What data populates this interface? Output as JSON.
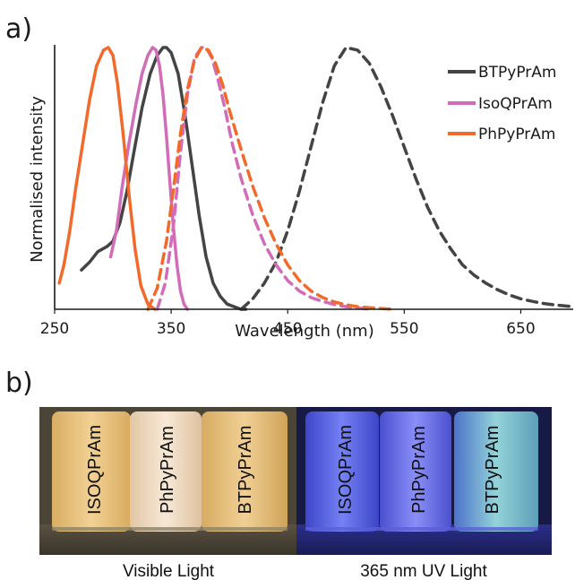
{
  "panel_labels": {
    "a": "a)",
    "b": "b)"
  },
  "chart_data": {
    "type": "line",
    "title": "",
    "xlabel": "Wavelength (nm)",
    "ylabel": "Normalised intensity",
    "xlim": [
      250,
      695
    ],
    "ylim": [
      0,
      1.0
    ],
    "x_ticks": [
      250,
      350,
      450,
      550,
      650
    ],
    "y_ticks": [],
    "grid": false,
    "legend_position": "top-right",
    "legend": [
      {
        "name": "BTPyPrAm",
        "color": "#444444"
      },
      {
        "name": "IsoQPrAm",
        "color": "#d36cb8"
      },
      {
        "name": "PhPyPrAm",
        "color": "#f26a2b"
      }
    ],
    "series": [
      {
        "name": "BTPyPrAm",
        "kind": "excitation",
        "color": "#444444",
        "dash": "solid",
        "x": [
          273,
          280,
          287,
          295,
          300,
          306,
          312,
          318,
          325,
          332,
          338,
          343,
          346,
          350,
          356,
          362,
          368,
          374,
          380,
          386,
          392,
          398,
          404,
          410,
          414
        ],
        "y": [
          0.15,
          0.18,
          0.22,
          0.24,
          0.26,
          0.33,
          0.45,
          0.6,
          0.77,
          0.9,
          0.97,
          1.0,
          1.0,
          0.98,
          0.9,
          0.74,
          0.55,
          0.36,
          0.2,
          0.1,
          0.05,
          0.02,
          0.01,
          0.0,
          0.0
        ]
      },
      {
        "name": "BTPyPrAm",
        "kind": "emission",
        "color": "#444444",
        "dash": "dashed",
        "x": [
          410,
          420,
          430,
          440,
          450,
          460,
          470,
          480,
          490,
          500,
          510,
          520,
          530,
          540,
          550,
          560,
          570,
          580,
          590,
          600,
          610,
          620,
          630,
          640,
          650,
          660,
          670,
          680,
          690,
          695
        ],
        "y": [
          0.0,
          0.04,
          0.1,
          0.18,
          0.3,
          0.45,
          0.62,
          0.79,
          0.93,
          1.0,
          0.99,
          0.94,
          0.85,
          0.74,
          0.62,
          0.5,
          0.39,
          0.3,
          0.23,
          0.17,
          0.13,
          0.1,
          0.075,
          0.055,
          0.04,
          0.03,
          0.022,
          0.016,
          0.012,
          0.01
        ]
      },
      {
        "name": "IsoQPrAm",
        "kind": "excitation",
        "color": "#d36cb8",
        "dash": "solid",
        "x": [
          298,
          303,
          308,
          314,
          320,
          325,
          330,
          334,
          337,
          340,
          343,
          346,
          349,
          352,
          355,
          358,
          361,
          364
        ],
        "y": [
          0.2,
          0.3,
          0.47,
          0.64,
          0.79,
          0.9,
          0.97,
          1.0,
          0.99,
          0.93,
          0.82,
          0.66,
          0.48,
          0.31,
          0.17,
          0.07,
          0.02,
          0.0
        ]
      },
      {
        "name": "IsoQPrAm",
        "kind": "emission",
        "color": "#d36cb8",
        "dash": "dashed",
        "x": [
          338,
          345,
          352,
          358,
          364,
          370,
          376,
          380,
          385,
          390,
          396,
          402,
          410,
          420,
          430,
          440,
          450,
          460,
          470,
          480,
          490,
          500,
          510,
          520
        ],
        "y": [
          0.0,
          0.1,
          0.32,
          0.6,
          0.82,
          0.96,
          1.0,
          1.0,
          0.96,
          0.88,
          0.77,
          0.64,
          0.5,
          0.36,
          0.25,
          0.17,
          0.11,
          0.07,
          0.045,
          0.03,
          0.018,
          0.01,
          0.005,
          0.0
        ]
      },
      {
        "name": "PhPyPrAm",
        "kind": "excitation",
        "color": "#f26a2b",
        "dash": "solid",
        "x": [
          254,
          258,
          263,
          268,
          274,
          280,
          286,
          292,
          296,
          300,
          304,
          309,
          314,
          319,
          324,
          330,
          336
        ],
        "y": [
          0.1,
          0.17,
          0.3,
          0.46,
          0.63,
          0.8,
          0.93,
          0.99,
          1.0,
          0.97,
          0.86,
          0.66,
          0.43,
          0.23,
          0.09,
          0.02,
          0.0
        ]
      },
      {
        "name": "PhPyPrAm",
        "kind": "emission",
        "color": "#f26a2b",
        "dash": "dashed",
        "x": [
          330,
          338,
          346,
          352,
          358,
          364,
          370,
          376,
          382,
          388,
          394,
          400,
          410,
          420,
          430,
          440,
          450,
          460,
          470,
          480,
          490,
          500,
          510,
          520,
          530,
          540
        ],
        "y": [
          0.0,
          0.08,
          0.26,
          0.46,
          0.67,
          0.84,
          0.95,
          1.0,
          0.99,
          0.94,
          0.86,
          0.76,
          0.61,
          0.47,
          0.35,
          0.25,
          0.17,
          0.11,
          0.07,
          0.045,
          0.028,
          0.017,
          0.01,
          0.006,
          0.003,
          0.0
        ]
      }
    ]
  },
  "photo": {
    "vials": [
      "ISOQPrAm",
      "PhPyPrAm",
      "BTPyPrAm",
      "ISOQPrAm",
      "PhPyPrAm",
      "BTPyPrAm"
    ],
    "captions": [
      "Visible Light",
      "365 nm UV Light"
    ],
    "colors": {
      "background_visible": "#4a4437",
      "background_uv": "#1b1f4a",
      "vial_visible_1": "#e9c37e",
      "vial_visible_2": "#f1dcc4",
      "vial_visible_3": "#eac383",
      "vial_uv_1": "#5a66e6",
      "vial_uv_2": "#6d73ec",
      "vial_uv_3": "#6fb0c6"
    }
  }
}
